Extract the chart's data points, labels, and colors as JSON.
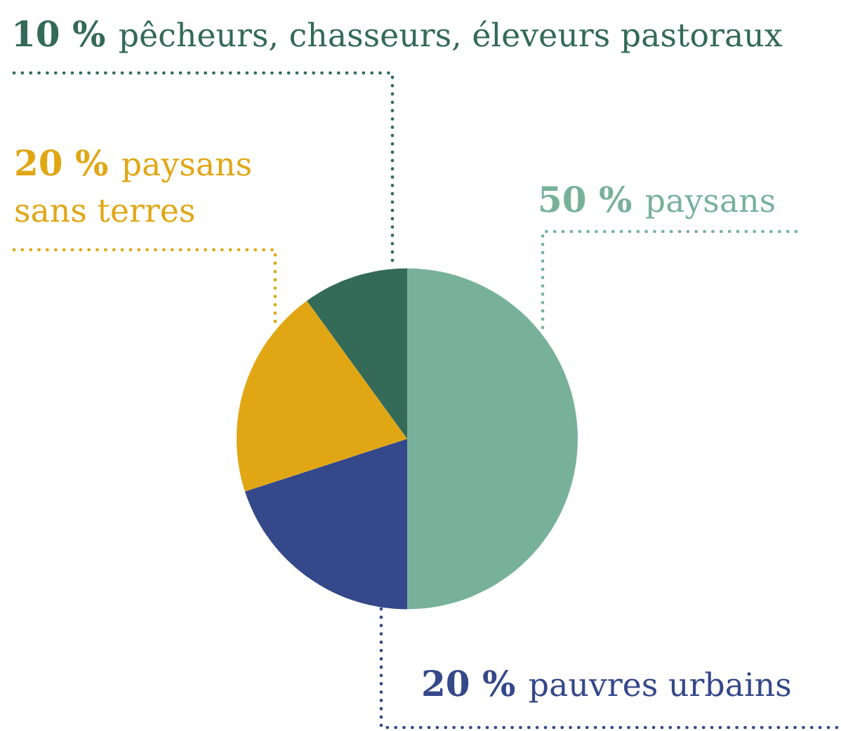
{
  "chart_data": {
    "type": "pie",
    "categories": [
      "paysans",
      "pauvres urbains",
      "paysans\nsans terres",
      "pêcheurs, chasseurs, éleveurs pastoraux"
    ],
    "values": [
      50,
      20,
      20,
      10
    ],
    "colors": [
      "#78b19b",
      "#35488a",
      "#e0a614",
      "#336a58"
    ],
    "value_labels": [
      "50 %",
      "20 %",
      "20 %",
      "10 %"
    ]
  }
}
